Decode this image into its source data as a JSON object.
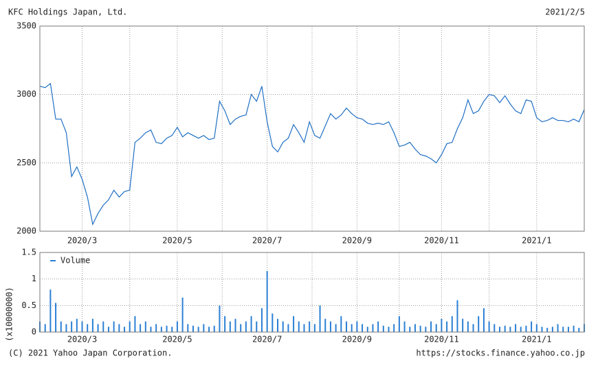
{
  "header": {
    "title": "KFC Holdings Japan, Ltd.",
    "date": "2021/2/5"
  },
  "footer": {
    "copyright": "(C) 2021 Yahoo Japan Corporation.",
    "url": "https://stocks.finance.yahoo.co.jp"
  },
  "chart_data": [
    {
      "type": "line",
      "color": "#1f6fc4",
      "grid": true,
      "categories": [
        null,
        null,
        null,
        null,
        null,
        null,
        null,
        null,
        "2020/3",
        null,
        null,
        null,
        null,
        null,
        null,
        null,
        null,
        null,
        null,
        null,
        null,
        null,
        null,
        null,
        null,
        null,
        "2020/5",
        null,
        null,
        null,
        null,
        null,
        null,
        null,
        null,
        null,
        null,
        null,
        null,
        null,
        null,
        null,
        null,
        "2020/7",
        null,
        null,
        null,
        null,
        null,
        null,
        null,
        null,
        null,
        null,
        null,
        null,
        null,
        null,
        null,
        null,
        "2020/9",
        null,
        null,
        null,
        null,
        null,
        null,
        null,
        null,
        null,
        null,
        null,
        null,
        null,
        null,
        null,
        "2020/11",
        null,
        null,
        null,
        null,
        null,
        null,
        null,
        null,
        null,
        null,
        null,
        null,
        null,
        null,
        null,
        null,
        null,
        "2021/1",
        null,
        null,
        null,
        null,
        null,
        null,
        null,
        null,
        null
      ],
      "values": [
        3060,
        3050,
        3080,
        2820,
        2820,
        2720,
        2400,
        2470,
        2380,
        2250,
        2050,
        2130,
        2190,
        2230,
        2300,
        2250,
        2290,
        2300,
        2650,
        2680,
        2720,
        2740,
        2650,
        2640,
        2680,
        2700,
        2760,
        2690,
        2720,
        2700,
        2680,
        2700,
        2670,
        2680,
        2950,
        2880,
        2780,
        2820,
        2840,
        2850,
        3000,
        2950,
        3060,
        2800,
        2620,
        2580,
        2650,
        2680,
        2780,
        2720,
        2650,
        2800,
        2700,
        2680,
        2770,
        2860,
        2820,
        2850,
        2900,
        2860,
        2830,
        2820,
        2790,
        2780,
        2790,
        2780,
        2800,
        2720,
        2620,
        2630,
        2650,
        2600,
        2560,
        2550,
        2530,
        2500,
        2560,
        2640,
        2650,
        2750,
        2830,
        2960,
        2860,
        2880,
        2950,
        3000,
        2990,
        2940,
        2990,
        2930,
        2880,
        2860,
        2960,
        2950,
        2830,
        2800,
        2810,
        2830,
        2810,
        2810,
        2800,
        2820,
        2800,
        2890
      ],
      "ylim": [
        2000,
        3500
      ],
      "yticks": [
        2000,
        2500,
        3000,
        3500
      ]
    },
    {
      "type": "bar",
      "color": "#2a7fd4",
      "grid": true,
      "ylabel": "(x10000000)",
      "series": [
        {
          "name": "Volume",
          "color": "#2a7fd4",
          "values": [
            0.2,
            0.15,
            0.8,
            0.55,
            0.2,
            0.15,
            0.2,
            0.25,
            0.2,
            0.15,
            0.25,
            0.15,
            0.2,
            0.1,
            0.2,
            0.15,
            0.1,
            0.2,
            0.3,
            0.15,
            0.2,
            0.1,
            0.15,
            0.1,
            0.12,
            0.1,
            0.2,
            0.65,
            0.15,
            0.12,
            0.1,
            0.15,
            0.1,
            0.12,
            0.5,
            0.3,
            0.2,
            0.25,
            0.15,
            0.2,
            0.3,
            0.2,
            0.45,
            1.15,
            0.35,
            0.25,
            0.2,
            0.15,
            0.3,
            0.2,
            0.15,
            0.2,
            0.15,
            0.5,
            0.25,
            0.2,
            0.15,
            0.3,
            0.2,
            0.15,
            0.2,
            0.15,
            0.1,
            0.15,
            0.2,
            0.12,
            0.1,
            0.15,
            0.3,
            0.2,
            0.1,
            0.15,
            0.12,
            0.1,
            0.2,
            0.15,
            0.25,
            0.2,
            0.3,
            0.6,
            0.25,
            0.2,
            0.15,
            0.3,
            0.45,
            0.2,
            0.15,
            0.1,
            0.12,
            0.1,
            0.15,
            0.1,
            0.12,
            0.2,
            0.15,
            0.1,
            0.08,
            0.1,
            0.15,
            0.1,
            0.1,
            0.12,
            0.08,
            0.15
          ]
        }
      ],
      "categories": [
        null,
        null,
        null,
        null,
        null,
        null,
        null,
        null,
        "2020/3",
        null,
        null,
        null,
        null,
        null,
        null,
        null,
        null,
        null,
        null,
        null,
        null,
        null,
        null,
        null,
        null,
        null,
        "2020/5",
        null,
        null,
        null,
        null,
        null,
        null,
        null,
        null,
        null,
        null,
        null,
        null,
        null,
        null,
        null,
        null,
        "2020/7",
        null,
        null,
        null,
        null,
        null,
        null,
        null,
        null,
        null,
        null,
        null,
        null,
        null,
        null,
        null,
        null,
        "2020/9",
        null,
        null,
        null,
        null,
        null,
        null,
        null,
        null,
        null,
        null,
        null,
        null,
        null,
        null,
        null,
        "2020/11",
        null,
        null,
        null,
        null,
        null,
        null,
        null,
        null,
        null,
        null,
        null,
        null,
        null,
        null,
        null,
        null,
        null,
        "2021/1",
        null,
        null,
        null,
        null,
        null,
        null,
        null,
        null,
        null
      ],
      "ylim": [
        0,
        1.5
      ],
      "yticks": [
        0,
        0.5,
        1,
        1.5
      ]
    }
  ]
}
